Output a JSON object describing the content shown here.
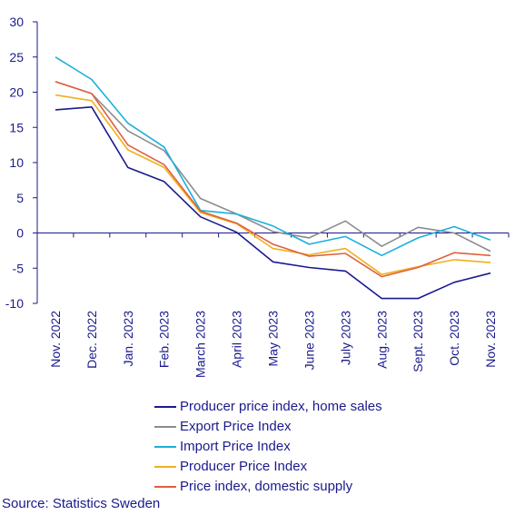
{
  "chart_data": {
    "type": "line",
    "categories": [
      "Nov. 2022",
      "Dec. 2022",
      "Jan. 2023",
      "Feb. 2023",
      "March 2023",
      "April 2023",
      "May 2023",
      "June 2023",
      "July 2023",
      "Aug. 2023",
      "Sept. 2023",
      "Oct. 2023",
      "Nov. 2023"
    ],
    "ylim": [
      -10,
      30
    ],
    "yticks": [
      30,
      25,
      20,
      15,
      10,
      5,
      0,
      -5,
      -10
    ],
    "grid": false,
    "legend_position": "bottom",
    "series": [
      {
        "name": "Producer price index, home sales",
        "color": "#1a1a8c",
        "values": [
          17.5,
          17.9,
          9.3,
          7.3,
          2.3,
          0.1,
          -4.1,
          -4.9,
          -5.4,
          -9.3,
          -9.3,
          -7.0,
          -5.7
        ]
      },
      {
        "name": "Export Price Index",
        "color": "#8c8c8c",
        "values": [
          21.5,
          19.8,
          14.5,
          11.7,
          4.9,
          2.7,
          0.2,
          -0.7,
          1.7,
          -1.9,
          0.8,
          0.0,
          -2.6
        ]
      },
      {
        "name": "Import Price Index",
        "color": "#1ab0dc",
        "values": [
          25.0,
          21.8,
          15.6,
          12.2,
          3.2,
          2.7,
          1.0,
          -1.6,
          -0.5,
          -3.2,
          -0.7,
          0.9,
          -1.0
        ]
      },
      {
        "name": "Producer Price Index",
        "color": "#f0b020",
        "values": [
          19.6,
          18.8,
          11.8,
          9.3,
          2.9,
          1.3,
          -2.2,
          -3.1,
          -2.2,
          -5.9,
          -4.8,
          -3.8,
          -4.2
        ]
      },
      {
        "name": "Price index, domestic supply",
        "color": "#e0603c",
        "values": [
          21.5,
          19.8,
          12.5,
          9.7,
          3.1,
          1.4,
          -1.6,
          -3.3,
          -2.9,
          -6.2,
          -4.9,
          -2.8,
          -3.2
        ]
      }
    ]
  },
  "source": "Source: Statistics Sweden"
}
